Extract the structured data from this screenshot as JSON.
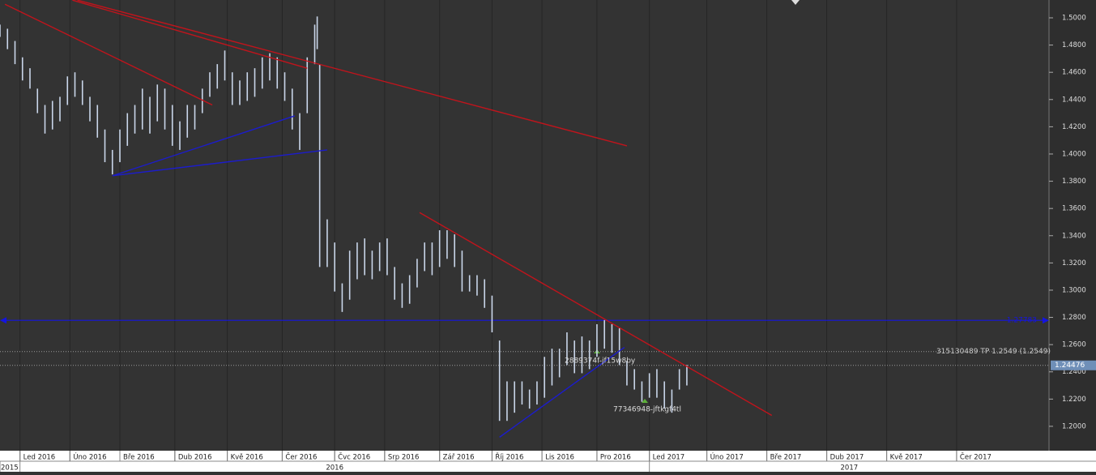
{
  "chart_data": {
    "type": "ohlc",
    "xlim": [
      0,
      420
    ],
    "ylim": [
      1.1821,
      1.5131
    ],
    "yticks": [
      {
        "value": 1.2,
        "label": "1.2000"
      },
      {
        "value": 1.22,
        "label": "1.2200"
      },
      {
        "value": 1.24,
        "label": "1.2400"
      },
      {
        "value": 1.26,
        "label": "1.2600"
      },
      {
        "value": 1.28,
        "label": "1.2800"
      },
      {
        "value": 1.3,
        "label": "1.3000"
      },
      {
        "value": 1.32,
        "label": "1.3200"
      },
      {
        "value": 1.34,
        "label": "1.3400"
      },
      {
        "value": 1.36,
        "label": "1.3600"
      },
      {
        "value": 1.38,
        "label": "1.3800"
      },
      {
        "value": 1.4,
        "label": "1.4000"
      },
      {
        "value": 1.42,
        "label": "1.4200"
      },
      {
        "value": 1.44,
        "label": "1.4400"
      },
      {
        "value": 1.46,
        "label": "1.4600"
      },
      {
        "value": 1.48,
        "label": "1.4800"
      },
      {
        "value": 1.5,
        "label": "1.5000"
      }
    ],
    "xticks": [
      {
        "value": 8,
        "label": "Led 2016"
      },
      {
        "value": 28,
        "label": "Úno 2016"
      },
      {
        "value": 48,
        "label": "Bře 2016"
      },
      {
        "value": 70,
        "label": "Dub 2016"
      },
      {
        "value": 91,
        "label": "Kvě 2016"
      },
      {
        "value": 113,
        "label": "Čer 2016"
      },
      {
        "value": 134,
        "label": "Čvc 2016"
      },
      {
        "value": 154,
        "label": "Srp 2016"
      },
      {
        "value": 176,
        "label": "Zář 2016"
      },
      {
        "value": 197,
        "label": "Říj 2016"
      },
      {
        "value": 217,
        "label": "Lis 2016"
      },
      {
        "value": 239,
        "label": "Pro 2016"
      },
      {
        "value": 260,
        "label": "Led 2017"
      },
      {
        "value": 283,
        "label": "Úno 2017"
      },
      {
        "value": 307,
        "label": "Bře 2017"
      },
      {
        "value": 331,
        "label": "Dub 2017"
      },
      {
        "value": 355,
        "label": "Kvě 2017"
      },
      {
        "value": 383,
        "label": "Čer 2017"
      }
    ],
    "year_ticks": [
      {
        "value": 0,
        "label": "2015"
      },
      {
        "value": 8,
        "label": "2016"
      },
      {
        "value": 260,
        "label": "2017"
      }
    ],
    "bar_color": "#c9d6ea",
    "x": [
      0,
      3,
      6,
      9,
      12,
      15,
      18,
      21,
      24,
      27,
      30,
      33,
      36,
      39,
      42,
      45,
      48,
      51,
      54,
      57,
      60,
      63,
      66,
      69,
      72,
      75,
      78,
      81,
      84,
      87,
      90,
      93,
      96,
      99,
      102,
      105,
      108,
      111,
      114,
      117,
      120,
      123,
      126,
      127,
      128,
      131,
      134,
      137,
      140,
      143,
      146,
      149,
      152,
      155,
      158,
      161,
      164,
      167,
      170,
      173,
      176,
      179,
      182,
      185,
      188,
      191,
      194,
      197,
      200,
      203,
      206,
      209,
      212,
      215,
      218,
      221,
      224,
      227,
      230,
      233,
      236,
      239,
      242,
      245,
      248,
      251,
      254,
      257,
      260,
      263,
      266,
      269,
      272,
      275
    ],
    "high": [
      1.495,
      1.492,
      1.483,
      1.471,
      1.463,
      1.448,
      1.436,
      1.439,
      1.442,
      1.457,
      1.46,
      1.454,
      1.442,
      1.436,
      1.418,
      1.403,
      1.418,
      1.43,
      1.436,
      1.448,
      1.442,
      1.451,
      1.448,
      1.436,
      1.424,
      1.436,
      1.436,
      1.448,
      1.46,
      1.466,
      1.476,
      1.46,
      1.454,
      1.46,
      1.463,
      1.471,
      1.474,
      1.471,
      1.46,
      1.448,
      1.43,
      1.471,
      1.495,
      1.501,
      1.466,
      1.352,
      1.335,
      1.305,
      1.329,
      1.335,
      1.338,
      1.329,
      1.335,
      1.338,
      1.317,
      1.305,
      1.311,
      1.323,
      1.335,
      1.335,
      1.344,
      1.344,
      1.341,
      1.329,
      1.311,
      1.311,
      1.308,
      1.296,
      1.263,
      1.233,
      1.233,
      1.233,
      1.227,
      1.233,
      1.251,
      1.257,
      1.257,
      1.269,
      1.263,
      1.266,
      1.263,
      1.275,
      1.278,
      1.275,
      1.272,
      1.248,
      1.242,
      1.233,
      1.239,
      1.242,
      1.233,
      1.227,
      1.242,
      1.245
    ],
    "low": [
      1.486,
      1.477,
      1.466,
      1.454,
      1.448,
      1.43,
      1.415,
      1.418,
      1.424,
      1.436,
      1.442,
      1.436,
      1.424,
      1.412,
      1.394,
      1.385,
      1.394,
      1.406,
      1.415,
      1.418,
      1.415,
      1.424,
      1.418,
      1.406,
      1.403,
      1.412,
      1.418,
      1.43,
      1.442,
      1.448,
      1.454,
      1.436,
      1.436,
      1.439,
      1.442,
      1.448,
      1.454,
      1.448,
      1.439,
      1.418,
      1.403,
      1.43,
      1.466,
      1.477,
      1.317,
      1.317,
      1.299,
      1.284,
      1.293,
      1.308,
      1.311,
      1.308,
      1.314,
      1.311,
      1.293,
      1.287,
      1.29,
      1.302,
      1.314,
      1.311,
      1.317,
      1.323,
      1.317,
      1.299,
      1.299,
      1.296,
      1.287,
      1.269,
      1.204,
      1.204,
      1.21,
      1.216,
      1.213,
      1.216,
      1.221,
      1.23,
      1.236,
      1.245,
      1.239,
      1.239,
      1.242,
      1.251,
      1.257,
      1.254,
      1.245,
      1.23,
      1.227,
      1.218,
      1.221,
      1.221,
      1.213,
      1.21,
      1.227,
      1.23
    ],
    "trendlines": [
      {
        "color": "#c0141c",
        "x": [
          2,
          85
        ],
        "y": [
          1.51,
          1.436
        ]
      },
      {
        "color": "#c0141c",
        "x": [
          29,
          123
        ],
        "y": [
          1.513,
          1.463
        ]
      },
      {
        "color": "#c0141c",
        "x": [
          31,
          251
        ],
        "y": [
          1.513,
          1.406
        ]
      },
      {
        "color": "#c0141c",
        "x": [
          168,
          309
        ],
        "y": [
          1.357,
          1.208
        ]
      },
      {
        "color": "#1c1ccc",
        "x": [
          45,
          118
        ],
        "y": [
          1.384,
          1.428
        ]
      },
      {
        "color": "#1c1ccc",
        "x": [
          45,
          131
        ],
        "y": [
          1.384,
          1.403
        ]
      },
      {
        "color": "#1c1ccc",
        "x": [
          200,
          250
        ],
        "y": [
          1.192,
          1.258
        ]
      }
    ],
    "level": {
      "value": 1.27783,
      "color": "#1414e0"
    },
    "tp_line": {
      "value": 1.2549,
      "label": "315130489 TP 1.2549 (1.2549)"
    },
    "price": {
      "value": 1.24476,
      "color": "#6f8fb8"
    },
    "orders": [
      "2889374f-jf15w8by",
      "77346948-jftkgf4tl"
    ]
  }
}
